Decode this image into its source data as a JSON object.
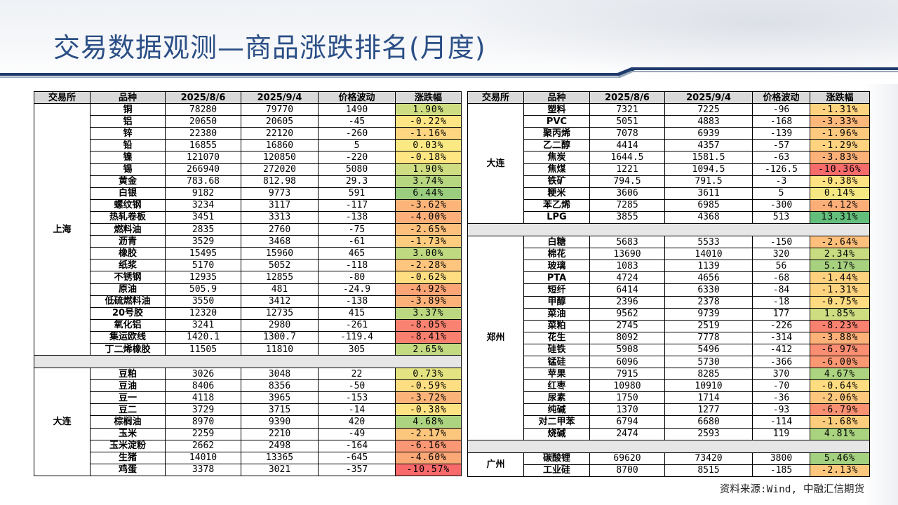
{
  "title": "交易数据观测—商品涨跌排名(月度)",
  "source": "资料来源:Wind, 中融汇信期货",
  "headers": [
    "交易所",
    "品种",
    "2025/8/6",
    "2025/9/4",
    "价格波动",
    "涨跌幅"
  ],
  "left_groups": [
    {
      "exchange": "上海",
      "rows": [
        {
          "name": "铜",
          "v1": "78280",
          "v2": "79770",
          "chg": "1490",
          "pct": "1.90%",
          "p": 1.9
        },
        {
          "name": "铝",
          "v1": "20650",
          "v2": "20605",
          "chg": "-45",
          "pct": "-0.22%",
          "p": -0.22
        },
        {
          "name": "锌",
          "v1": "22380",
          "v2": "22120",
          "chg": "-260",
          "pct": "-1.16%",
          "p": -1.16
        },
        {
          "name": "铅",
          "v1": "16855",
          "v2": "16860",
          "chg": "5",
          "pct": "0.03%",
          "p": 0.03
        },
        {
          "name": "镍",
          "v1": "121070",
          "v2": "120850",
          "chg": "-220",
          "pct": "-0.18%",
          "p": -0.18
        },
        {
          "name": "锡",
          "v1": "266940",
          "v2": "272020",
          "chg": "5080",
          "pct": "1.90%",
          "p": 1.9
        },
        {
          "name": "黄金",
          "v1": "783.68",
          "v2": "812.98",
          "chg": "29.3",
          "pct": "3.74%",
          "p": 3.74
        },
        {
          "name": "白银",
          "v1": "9182",
          "v2": "9773",
          "chg": "591",
          "pct": "6.44%",
          "p": 6.44
        },
        {
          "name": "螺纹钢",
          "v1": "3234",
          "v2": "3117",
          "chg": "-117",
          "pct": "-3.62%",
          "p": -3.62
        },
        {
          "name": "热轧卷板",
          "v1": "3451",
          "v2": "3313",
          "chg": "-138",
          "pct": "-4.00%",
          "p": -4.0
        },
        {
          "name": "燃料油",
          "v1": "2835",
          "v2": "2760",
          "chg": "-75",
          "pct": "-2.65%",
          "p": -2.65
        },
        {
          "name": "沥青",
          "v1": "3529",
          "v2": "3468",
          "chg": "-61",
          "pct": "-1.73%",
          "p": -1.73
        },
        {
          "name": "橡胶",
          "v1": "15495",
          "v2": "15960",
          "chg": "465",
          "pct": "3.00%",
          "p": 3.0
        },
        {
          "name": "纸浆",
          "v1": "5170",
          "v2": "5052",
          "chg": "-118",
          "pct": "-2.28%",
          "p": -2.28
        },
        {
          "name": "不锈钢",
          "v1": "12935",
          "v2": "12855",
          "chg": "-80",
          "pct": "-0.62%",
          "p": -0.62
        },
        {
          "name": "原油",
          "v1": "505.9",
          "v2": "481",
          "chg": "-24.9",
          "pct": "-4.92%",
          "p": -4.92
        },
        {
          "name": "低硫燃料油",
          "v1": "3550",
          "v2": "3412",
          "chg": "-138",
          "pct": "-3.89%",
          "p": -3.89
        },
        {
          "name": "20号胶",
          "v1": "12320",
          "v2": "12735",
          "chg": "415",
          "pct": "3.37%",
          "p": 3.37
        },
        {
          "name": "氧化铝",
          "v1": "3241",
          "v2": "2980",
          "chg": "-261",
          "pct": "-8.05%",
          "p": -8.05
        },
        {
          "name": "集运欧线",
          "v1": "1420.1",
          "v2": "1300.7",
          "chg": "-119.4",
          "pct": "-8.41%",
          "p": -8.41
        },
        {
          "name": "丁二烯橡胶",
          "v1": "11505",
          "v2": "11810",
          "chg": "305",
          "pct": "2.65%",
          "p": 2.65
        }
      ]
    },
    {
      "exchange": "大连",
      "rows": [
        {
          "name": "豆粕",
          "v1": "3026",
          "v2": "3048",
          "chg": "22",
          "pct": "0.73%",
          "p": 0.73
        },
        {
          "name": "豆油",
          "v1": "8406",
          "v2": "8356",
          "chg": "-50",
          "pct": "-0.59%",
          "p": -0.59
        },
        {
          "name": "豆一",
          "v1": "4118",
          "v2": "3965",
          "chg": "-153",
          "pct": "-3.72%",
          "p": -3.72
        },
        {
          "name": "豆二",
          "v1": "3729",
          "v2": "3715",
          "chg": "-14",
          "pct": "-0.38%",
          "p": -0.38
        },
        {
          "name": "棕榈油",
          "v1": "8970",
          "v2": "9390",
          "chg": "420",
          "pct": "4.68%",
          "p": 4.68
        },
        {
          "name": "玉米",
          "v1": "2259",
          "v2": "2210",
          "chg": "-49",
          "pct": "-2.17%",
          "p": -2.17
        },
        {
          "name": "玉米淀粉",
          "v1": "2662",
          "v2": "2498",
          "chg": "-164",
          "pct": "-6.16%",
          "p": -6.16
        },
        {
          "name": "生猪",
          "v1": "14010",
          "v2": "13365",
          "chg": "-645",
          "pct": "-4.60%",
          "p": -4.6
        },
        {
          "name": "鸡蛋",
          "v1": "3378",
          "v2": "3021",
          "chg": "-357",
          "pct": "-10.57%",
          "p": -10.57
        }
      ]
    }
  ],
  "right_groups": [
    {
      "exchange": "大连",
      "rows": [
        {
          "name": "塑料",
          "v1": "7321",
          "v2": "7225",
          "chg": "-96",
          "pct": "-1.31%",
          "p": -1.31
        },
        {
          "name": "PVC",
          "v1": "5051",
          "v2": "4883",
          "chg": "-168",
          "pct": "-3.33%",
          "p": -3.33
        },
        {
          "name": "聚丙烯",
          "v1": "7078",
          "v2": "6939",
          "chg": "-139",
          "pct": "-1.96%",
          "p": -1.96
        },
        {
          "name": "乙二醇",
          "v1": "4414",
          "v2": "4357",
          "chg": "-57",
          "pct": "-1.29%",
          "p": -1.29
        },
        {
          "name": "焦炭",
          "v1": "1644.5",
          "v2": "1581.5",
          "chg": "-63",
          "pct": "-3.83%",
          "p": -3.83
        },
        {
          "name": "焦煤",
          "v1": "1221",
          "v2": "1094.5",
          "chg": "-126.5",
          "pct": "-10.36%",
          "p": -10.36
        },
        {
          "name": "铁矿",
          "v1": "794.5",
          "v2": "791.5",
          "chg": "-3",
          "pct": "-0.38%",
          "p": -0.38
        },
        {
          "name": "粳米",
          "v1": "3606",
          "v2": "3611",
          "chg": "5",
          "pct": "0.14%",
          "p": 0.14
        },
        {
          "name": "苯乙烯",
          "v1": "7285",
          "v2": "6985",
          "chg": "-300",
          "pct": "-4.12%",
          "p": -4.12
        },
        {
          "name": "LPG",
          "v1": "3855",
          "v2": "4368",
          "chg": "513",
          "pct": "13.31%",
          "p": 13.31
        }
      ]
    },
    {
      "exchange": "郑州",
      "rows": [
        {
          "name": "白糖",
          "v1": "5683",
          "v2": "5533",
          "chg": "-150",
          "pct": "-2.64%",
          "p": -2.64
        },
        {
          "name": "棉花",
          "v1": "13690",
          "v2": "14010",
          "chg": "320",
          "pct": "2.34%",
          "p": 2.34
        },
        {
          "name": "玻璃",
          "v1": "1083",
          "v2": "1139",
          "chg": "56",
          "pct": "5.17%",
          "p": 5.17
        },
        {
          "name": "PTA",
          "v1": "4724",
          "v2": "4656",
          "chg": "-68",
          "pct": "-1.44%",
          "p": -1.44
        },
        {
          "name": "短纤",
          "v1": "6414",
          "v2": "6330",
          "chg": "-84",
          "pct": "-1.31%",
          "p": -1.31
        },
        {
          "name": "甲醇",
          "v1": "2396",
          "v2": "2378",
          "chg": "-18",
          "pct": "-0.75%",
          "p": -0.75
        },
        {
          "name": "菜油",
          "v1": "9562",
          "v2": "9739",
          "chg": "177",
          "pct": "1.85%",
          "p": 1.85
        },
        {
          "name": "菜粕",
          "v1": "2745",
          "v2": "2519",
          "chg": "-226",
          "pct": "-8.23%",
          "p": -8.23
        },
        {
          "name": "花生",
          "v1": "8092",
          "v2": "7778",
          "chg": "-314",
          "pct": "-3.88%",
          "p": -3.88
        },
        {
          "name": "硅铁",
          "v1": "5908",
          "v2": "5496",
          "chg": "-412",
          "pct": "-6.97%",
          "p": -6.97
        },
        {
          "name": "锰硅",
          "v1": "6096",
          "v2": "5730",
          "chg": "-366",
          "pct": "-6.00%",
          "p": -6.0
        },
        {
          "name": "苹果",
          "v1": "7915",
          "v2": "8285",
          "chg": "370",
          "pct": "4.67%",
          "p": 4.67
        },
        {
          "name": "红枣",
          "v1": "10980",
          "v2": "10910",
          "chg": "-70",
          "pct": "-0.64%",
          "p": -0.64
        },
        {
          "name": "尿素",
          "v1": "1750",
          "v2": "1714",
          "chg": "-36",
          "pct": "-2.06%",
          "p": -2.06
        },
        {
          "name": "纯碱",
          "v1": "1370",
          "v2": "1277",
          "chg": "-93",
          "pct": "-6.79%",
          "p": -6.79
        },
        {
          "name": "对二甲苯",
          "v1": "6794",
          "v2": "6680",
          "chg": "-114",
          "pct": "-1.68%",
          "p": -1.68
        },
        {
          "name": "烧碱",
          "v1": "2474",
          "v2": "2593",
          "chg": "119",
          "pct": "4.81%",
          "p": 4.81
        }
      ]
    },
    {
      "exchange": "广州",
      "rows": [
        {
          "name": "碳酸锂",
          "v1": "69620",
          "v2": "73420",
          "chg": "3800",
          "pct": "5.46%",
          "p": 5.46
        },
        {
          "name": "工业硅",
          "v1": "8700",
          "v2": "8515",
          "chg": "-185",
          "pct": "-2.13%",
          "p": -2.13
        }
      ]
    }
  ],
  "colors": {
    "title": "#2b4f86",
    "header_bg": "#d9d9d9",
    "separator_bg": "#e7e6e6",
    "scale_red": "#f8696b",
    "scale_yellow": "#ffeb84",
    "scale_green": "#63be7b"
  }
}
